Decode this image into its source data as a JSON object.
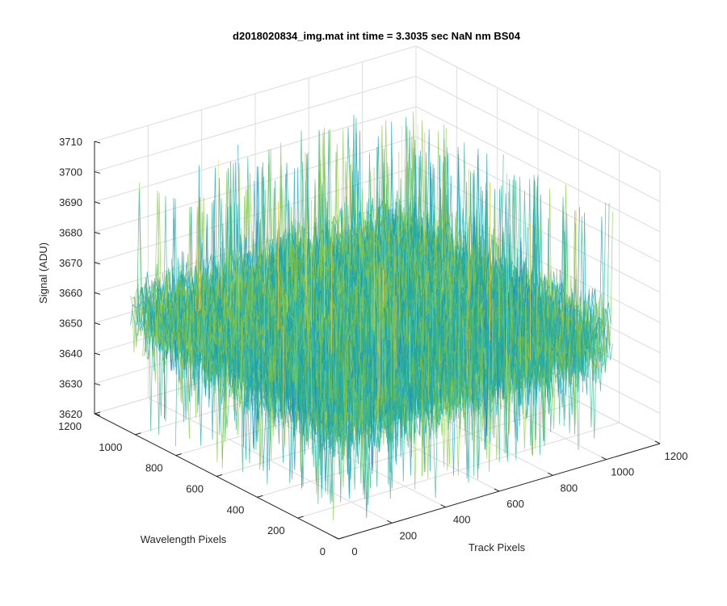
{
  "chart_data": {
    "type": "surface",
    "title": "d2018020834_img.mat int time = 3.3035 sec  NaN nm BS04",
    "xlabel": "Track Pixels",
    "ylabel": "Wavelength Pixels",
    "zlabel": "Signal (ADU)",
    "xlim": [
      0,
      1200
    ],
    "ylim": [
      0,
      1200
    ],
    "zlim": [
      3620,
      3710
    ],
    "xticks": [
      0,
      200,
      400,
      600,
      800,
      1000,
      1200
    ],
    "yticks": [
      0,
      200,
      400,
      600,
      800,
      1000,
      1200
    ],
    "zticks": [
      3620,
      3630,
      3640,
      3650,
      3660,
      3670,
      3680,
      3690,
      3700,
      3710
    ],
    "data_extent": {
      "x": [
        1,
        1024
      ],
      "y": [
        1,
        1024
      ]
    },
    "signal_level": {
      "mean": 3659,
      "typical_min": 3635,
      "typical_max": 3685,
      "extreme_min": 3622,
      "extreme_max": 3705
    },
    "grid": true,
    "box": false,
    "colormap": [
      "#1f78d1",
      "#17a2b8",
      "#36b48d",
      "#8cc84b",
      "#e6c84a"
    ]
  }
}
